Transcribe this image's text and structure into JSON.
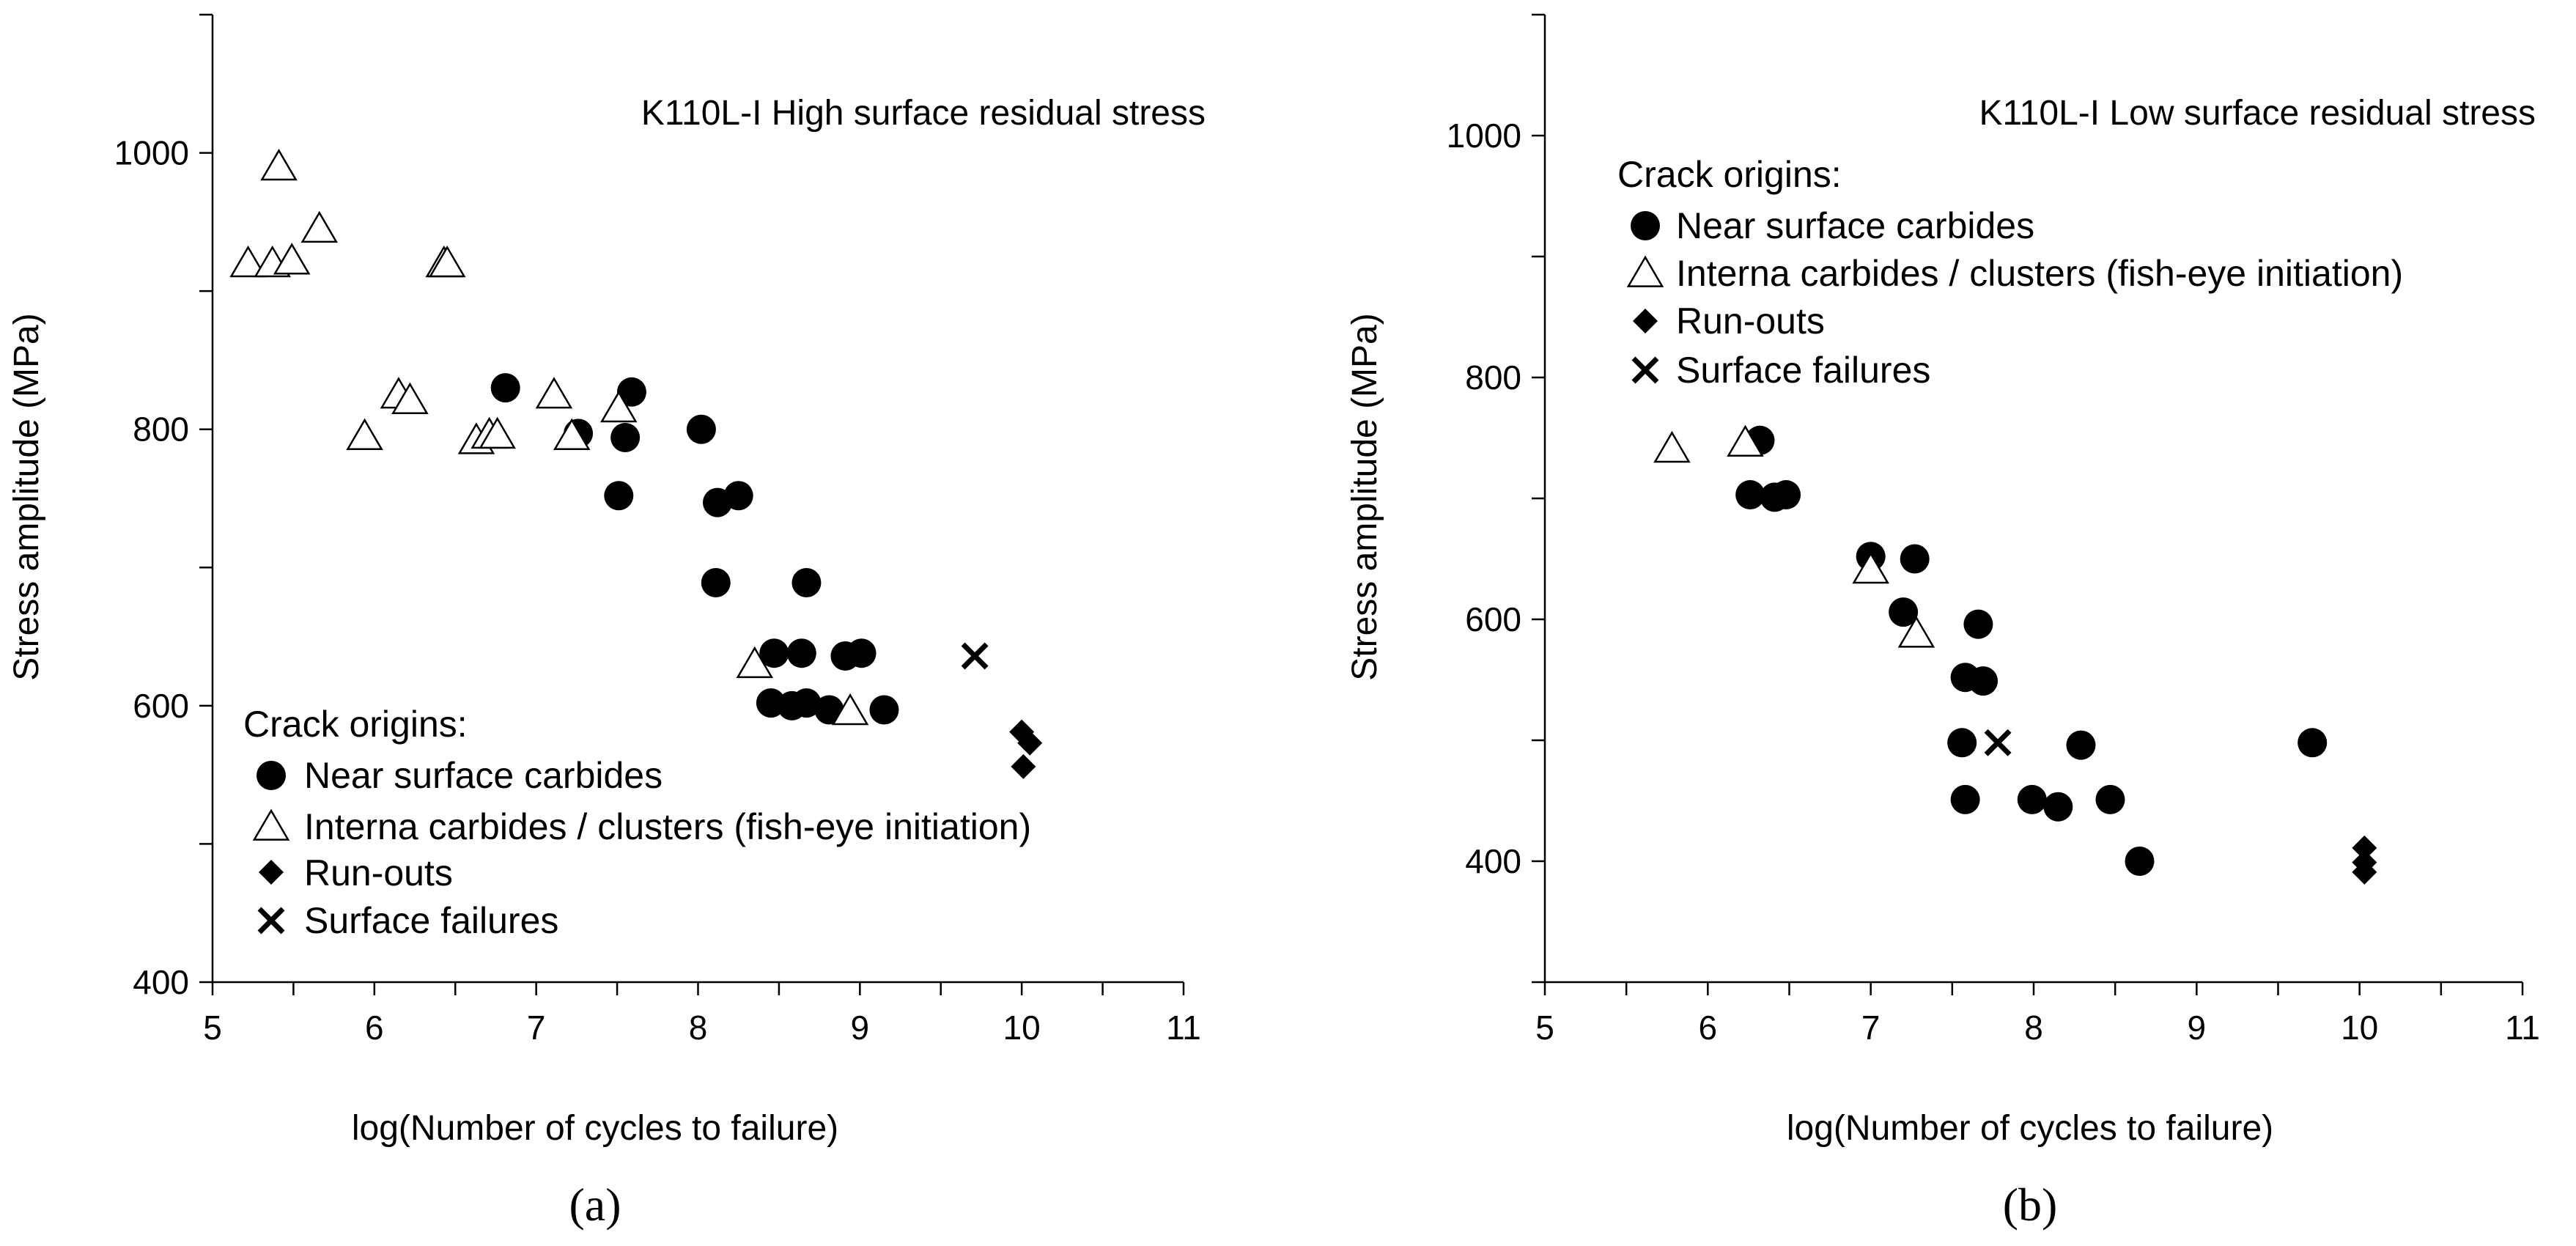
{
  "chart_data": [
    {
      "type": "scatter",
      "panel": "(a)",
      "title": "K110L-I High surface residual stress",
      "xlabel": "log(Number of cycles to failure)",
      "ylabel": "Stress amplitude (MPa)",
      "xlim": [
        5,
        11
      ],
      "ylim": [
        400,
        1100
      ],
      "xticks": [
        5,
        6,
        7,
        8,
        9,
        10,
        11
      ],
      "yticks": [
        400,
        600,
        800,
        1000
      ],
      "legend": {
        "title": "Crack origins:",
        "placement": "bottom-left",
        "entries": [
          {
            "label": "Near surface carbides",
            "marker": "circle"
          },
          {
            "label": "Interna carbides / clusters (fish-eye initiation)",
            "marker": "triangle"
          },
          {
            "label": "Run-outs",
            "marker": "diamond"
          },
          {
            "label": "Surface failures",
            "marker": "cross"
          }
        ]
      },
      "series": [
        {
          "marker": "circle",
          "points": [
            [
              6.81,
              830
            ],
            [
              7.26,
              797
            ],
            [
              7.55,
              794
            ],
            [
              7.59,
              827
            ],
            [
              7.51,
              752
            ],
            [
              8.02,
              800
            ],
            [
              8.12,
              747
            ],
            [
              8.25,
              752
            ],
            [
              8.11,
              689
            ],
            [
              8.67,
              689
            ],
            [
              8.47,
              638
            ],
            [
              8.64,
              638
            ],
            [
              8.45,
              602
            ],
            [
              8.58,
              600
            ],
            [
              8.67,
              602
            ],
            [
              8.81,
              597
            ],
            [
              8.91,
              636
            ],
            [
              9.01,
              638
            ],
            [
              9.15,
              597
            ]
          ]
        },
        {
          "marker": "triangle",
          "points": [
            [
              5.22,
              920
            ],
            [
              5.37,
              920
            ],
            [
              5.41,
              990
            ],
            [
              5.49,
              922
            ],
            [
              5.66,
              945
            ],
            [
              5.94,
              795
            ],
            [
              6.15,
              825
            ],
            [
              6.22,
              821
            ],
            [
              6.43,
              920
            ],
            [
              6.45,
              920
            ],
            [
              6.63,
              792
            ],
            [
              6.71,
              796
            ],
            [
              6.76,
              796
            ],
            [
              7.11,
              825
            ],
            [
              7.22,
              795
            ],
            [
              7.51,
              815
            ],
            [
              8.35,
              630
            ],
            [
              8.94,
              596
            ]
          ]
        },
        {
          "marker": "diamond",
          "points": [
            [
              10.0,
              581
            ],
            [
              10.05,
              573
            ],
            [
              10.01,
              556
            ]
          ]
        },
        {
          "marker": "cross",
          "points": [
            [
              9.71,
              636
            ]
          ]
        }
      ]
    },
    {
      "type": "scatter",
      "panel": "(b)",
      "title": "K110L-I Low surface residual stress",
      "xlabel": "log(Number of cycles to failure)",
      "ylabel": "Stress amplitude (MPa)",
      "xlim": [
        5,
        11
      ],
      "ylim": [
        300,
        1100
      ],
      "xticks": [
        5,
        6,
        7,
        8,
        9,
        10,
        11
      ],
      "yticks": [
        400,
        600,
        800,
        1000
      ],
      "legend": {
        "title": "Crack origins:",
        "placement": "top-left",
        "entries": [
          {
            "label": "Near surface carbides",
            "marker": "circle"
          },
          {
            "label": "Interna carbides / clusters (fish-eye initiation)",
            "marker": "triangle"
          },
          {
            "label": "Run-outs",
            "marker": "diamond"
          },
          {
            "label": "Surface failures",
            "marker": "cross"
          }
        ]
      },
      "series": [
        {
          "marker": "circle",
          "points": [
            [
              6.32,
              748
            ],
            [
              6.26,
              703
            ],
            [
              6.41,
              701
            ],
            [
              6.48,
              703
            ],
            [
              7.0,
              652
            ],
            [
              7.27,
              650
            ],
            [
              7.2,
              606
            ],
            [
              7.66,
              596
            ],
            [
              7.58,
              552
            ],
            [
              7.69,
              549
            ],
            [
              7.56,
              498
            ],
            [
              8.29,
              496
            ],
            [
              7.58,
              451
            ],
            [
              7.99,
              451
            ],
            [
              8.15,
              445
            ],
            [
              8.47,
              451
            ],
            [
              8.65,
              400
            ],
            [
              9.71,
              498
            ]
          ]
        },
        {
          "marker": "triangle",
          "points": [
            [
              5.78,
              741
            ],
            [
              6.23,
              746
            ],
            [
              7.0,
              641
            ],
            [
              7.28,
              588
            ]
          ]
        },
        {
          "marker": "diamond",
          "points": [
            [
              10.03,
              411
            ],
            [
              10.03,
              399
            ],
            [
              10.03,
              391
            ]
          ]
        },
        {
          "marker": "cross",
          "points": [
            [
              7.78,
              498
            ]
          ]
        }
      ]
    }
  ]
}
